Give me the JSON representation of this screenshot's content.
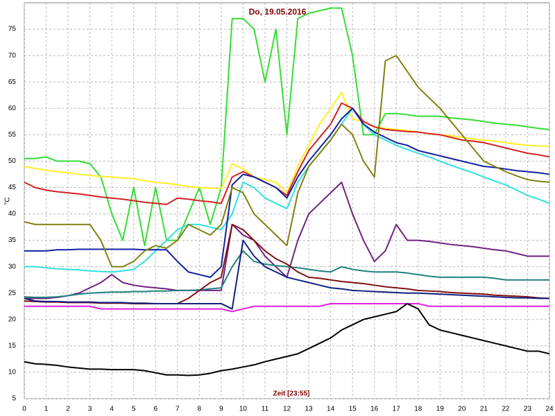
{
  "chart_data": {
    "type": "line",
    "title": "Do, 19.05.2016",
    "x_label": "Zeit [23:55]",
    "y_label": "°C",
    "x": [
      0,
      0.5,
      1,
      1.5,
      2,
      2.5,
      3,
      3.5,
      4,
      4.5,
      5,
      5.5,
      6,
      6.5,
      7,
      7.5,
      8,
      8.5,
      9,
      9.5,
      10,
      10.5,
      11,
      11.5,
      12,
      12.5,
      13,
      13.5,
      14,
      14.5,
      15,
      15.5,
      16,
      16.5,
      17,
      17.5,
      18,
      18.5,
      19,
      19.5,
      20,
      20.5,
      21,
      21.5,
      22,
      22.5,
      23,
      23.5,
      24
    ],
    "xlim": [
      0,
      24
    ],
    "xticks": [
      0,
      1,
      2,
      3,
      4,
      5,
      6,
      7,
      8,
      9,
      10,
      11,
      12,
      13,
      14,
      15,
      16,
      17,
      18,
      19,
      20,
      21,
      22,
      23,
      24
    ],
    "ylim": [
      5,
      80
    ],
    "yticks": [
      5,
      10,
      15,
      20,
      25,
      30,
      35,
      40,
      45,
      50,
      55,
      60,
      65,
      70,
      75
    ],
    "grid": true,
    "series": [
      {
        "color": "#33dd33",
        "values": [
          50.5,
          50.5,
          50.8,
          50,
          50,
          50,
          49.5,
          47,
          40,
          35,
          45,
          34,
          45,
          35,
          35,
          40,
          45,
          38,
          45,
          77,
          77,
          75,
          65,
          75,
          55,
          77,
          78,
          78.5,
          79,
          79,
          70,
          55,
          55,
          59,
          59,
          58.8,
          58.5,
          58.5,
          58.5,
          58.2,
          58,
          57.8,
          57.5,
          57.2,
          57,
          56.8,
          56.5,
          56.2,
          56
        ]
      },
      {
        "color": "#ffee22",
        "values": [
          49,
          48.6,
          48.3,
          48,
          47.8,
          47.5,
          47.3,
          47.1,
          47,
          46.8,
          46.7,
          46.3,
          46,
          45.8,
          45.5,
          45.2,
          45,
          44.9,
          44.8,
          49.5,
          48.5,
          47,
          46.5,
          46,
          44,
          49,
          53,
          57,
          60,
          63,
          58,
          57.5,
          56.5,
          56.2,
          56,
          55.8,
          55.5,
          55.2,
          55,
          54.8,
          54.5,
          54.2,
          54,
          53.8,
          53.5,
          53.2,
          53,
          52.9,
          52.8
        ]
      },
      {
        "color": "#d42020",
        "values": [
          46,
          45,
          44.5,
          44.2,
          44,
          43.8,
          43.5,
          43.2,
          43,
          42.8,
          42.5,
          42.2,
          42,
          41.8,
          43,
          42.8,
          42.5,
          42.3,
          42,
          47,
          48,
          47,
          46,
          45,
          43.5,
          48,
          52,
          54.5,
          57,
          61,
          60,
          57.5,
          56.5,
          56,
          55.8,
          55.6,
          55.5,
          55.2,
          55,
          54.5,
          54,
          53.8,
          53.5,
          53,
          52.5,
          52,
          51.5,
          51.2,
          50.8
        ]
      },
      {
        "color": "#30e0e0",
        "values": [
          30,
          30,
          29.8,
          29.6,
          29.5,
          29.4,
          29.2,
          29.1,
          29,
          29.2,
          29.5,
          31,
          33,
          35,
          37,
          38,
          38,
          37.5,
          37,
          40,
          46,
          45,
          43,
          42,
          41,
          46,
          49,
          51.5,
          54,
          57,
          60,
          57,
          55,
          54,
          53,
          52.2,
          51.5,
          50.8,
          50,
          49.2,
          48.5,
          47.8,
          47,
          46.2,
          45.5,
          44.5,
          43.5,
          42.8,
          42
        ]
      },
      {
        "color": "#1020a0",
        "values": [
          33,
          33,
          33,
          33.2,
          33.2,
          33.3,
          33.3,
          33.3,
          33.3,
          33.3,
          33.3,
          33.2,
          33.2,
          33.2,
          31,
          29,
          28.5,
          28,
          30,
          45.5,
          47.5,
          47,
          46,
          45,
          43,
          47,
          50,
          52.5,
          55,
          58,
          60,
          57,
          55.5,
          54.5,
          53.5,
          53,
          52,
          51.5,
          51,
          50.5,
          50,
          49.5,
          49,
          48.8,
          48.5,
          48.2,
          48,
          47.8,
          47.5
        ]
      },
      {
        "color": "#808010",
        "values": [
          38.5,
          38,
          38,
          38,
          38,
          38,
          38,
          35,
          30,
          30,
          31,
          33,
          34,
          33.5,
          35,
          38,
          37,
          36,
          38,
          45,
          44,
          40,
          38,
          36,
          34,
          44,
          49,
          51.5,
          54,
          57,
          55,
          50,
          47,
          69,
          70,
          67,
          64,
          62,
          60,
          57.5,
          55,
          52.5,
          50,
          49,
          48,
          47.2,
          46.5,
          46.2,
          46
        ]
      },
      {
        "color": "#702080",
        "values": [
          24,
          24,
          24,
          24.2,
          24.5,
          25,
          26,
          27,
          28.5,
          27,
          26.5,
          26.2,
          26,
          25.8,
          25.5,
          25.5,
          25.5,
          25.5,
          25.5,
          38,
          36,
          35,
          32,
          30,
          28,
          35,
          40,
          42,
          44,
          46,
          40,
          35,
          31,
          33,
          38,
          35,
          35,
          34.8,
          34.5,
          34.2,
          34,
          33.8,
          33.5,
          33.2,
          33,
          32.5,
          32,
          32,
          32
        ]
      },
      {
        "color": "#208080",
        "values": [
          24.3,
          24.2,
          24.2,
          24.3,
          24.5,
          24.8,
          25,
          25.1,
          25.2,
          25.2,
          25.3,
          25.3,
          25.4,
          25.4,
          25.5,
          25.5,
          25.6,
          25.8,
          26,
          30,
          33,
          31,
          30.5,
          30.2,
          30,
          29.8,
          29.5,
          29.2,
          29,
          30,
          29.5,
          29.2,
          29,
          29,
          29,
          28.8,
          28.5,
          28.2,
          28,
          28,
          28,
          28,
          28,
          27.8,
          27.5,
          27.5,
          27.5,
          27.5,
          27.5
        ]
      },
      {
        "color": "#801010",
        "values": [
          23.5,
          23.4,
          23.3,
          23.3,
          23.2,
          23.2,
          23.2,
          23.1,
          23.1,
          23.1,
          23,
          23,
          23,
          23,
          23,
          24,
          25.5,
          27,
          28,
          38,
          37,
          35,
          33,
          31.5,
          30.5,
          29,
          28,
          27.8,
          27.5,
          27.2,
          27,
          26.8,
          26.5,
          26.2,
          26,
          25.8,
          25.5,
          25.4,
          25.3,
          25.1,
          25,
          24.9,
          24.8,
          24.6,
          24.5,
          24.4,
          24.3,
          24.1,
          24
        ]
      },
      {
        "color": "#102080",
        "values": [
          24,
          23.5,
          23.4,
          23.4,
          23.3,
          23.3,
          23.3,
          23.2,
          23.2,
          23.2,
          23.1,
          23.1,
          23,
          23,
          23,
          23,
          23,
          23,
          23,
          22,
          35,
          32,
          30,
          29,
          28,
          27.5,
          27,
          26.5,
          26,
          25.8,
          25.5,
          25.4,
          25.3,
          25.2,
          25.1,
          25,
          25,
          24.9,
          24.8,
          24.7,
          24.6,
          24.5,
          24.4,
          24.3,
          24.2,
          24.1,
          24.1,
          24,
          24
        ]
      },
      {
        "color": "#e020e0",
        "values": [
          22.5,
          22.5,
          22.5,
          22.5,
          22.5,
          22.5,
          22.5,
          22,
          22,
          22,
          22,
          22,
          22,
          22,
          22,
          22,
          22,
          22,
          22,
          21.5,
          22,
          22.5,
          22.5,
          22.5,
          22.5,
          22.5,
          22.5,
          22.5,
          23,
          23,
          23,
          23,
          23,
          23,
          23,
          23,
          23,
          22.5,
          22.5,
          22.5,
          22.5,
          22.5,
          22.5,
          22.5,
          22.5,
          22.5,
          22.5,
          22.5,
          22.5
        ]
      },
      {
        "color": "#000000",
        "values": [
          12,
          11.6,
          11.5,
          11.3,
          11,
          10.8,
          10.6,
          10.6,
          10.5,
          10.5,
          10.5,
          10.3,
          9.9,
          9.5,
          9.5,
          9.4,
          9.5,
          9.8,
          10.3,
          10.6,
          11,
          11.4,
          12,
          12.5,
          13,
          13.5,
          14.5,
          15.5,
          16.5,
          18,
          19,
          20,
          20.5,
          21,
          21.5,
          23,
          22,
          19,
          18,
          17.5,
          17,
          16.5,
          16,
          15.5,
          15,
          14.5,
          14,
          14,
          13.5
        ]
      }
    ]
  }
}
